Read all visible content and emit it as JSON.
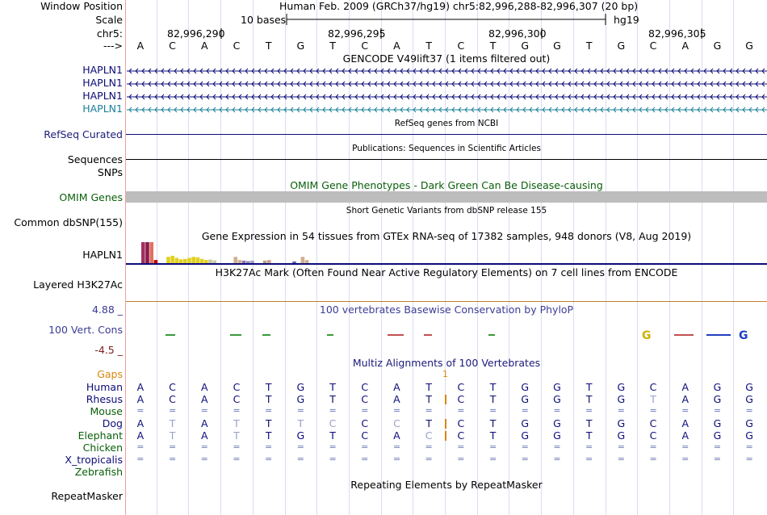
{
  "header": {
    "window_position_label": "Window Position",
    "title": "Human Feb. 2009 (GRCh37/hg19)   chr5:82,996,288-82,996,307 (20 bp)",
    "scale_label": "Scale",
    "scale_bar": "10 bases",
    "assembly": "hg19",
    "chrom_label": "chr5:",
    "strand_label": "--->",
    "coords": [
      "82,996,290",
      "82,996,295",
      "82,996,300",
      "82,996,305"
    ],
    "sequence": [
      "A",
      "C",
      "A",
      "C",
      "T",
      "G",
      "T",
      "C",
      "A",
      "T",
      "C",
      "T",
      "G",
      "G",
      "T",
      "G",
      "C",
      "A",
      "G",
      "G"
    ]
  },
  "colors": {
    "navy": "#0c0c78",
    "omim_green": "#0a5f0a",
    "gaps_orange": "#d9860a",
    "phylop_blue": "#3c3c96",
    "phylop_red": "#7a2020",
    "refseq": "#0c0c78",
    "teal": "#1a7f9a"
  },
  "tracks": {
    "gencode": {
      "title": "GENCODE V49lift37 (1 items filtered out)",
      "items": [
        "HAPLN1",
        "HAPLN1",
        "HAPLN1",
        "HAPLN1"
      ]
    },
    "refseq": {
      "title": "RefSeq genes from NCBI",
      "label": "RefSeq Curated"
    },
    "publications": {
      "title": "Publications: Sequences in Scientific Articles",
      "label": "Sequences"
    },
    "snps_label": "SNPs",
    "omim": {
      "title": "OMIM Gene Phenotypes - Dark Green Can Be Disease-causing",
      "label": "OMIM Genes"
    },
    "dbsnp": {
      "title": "Short Genetic Variants from dbSNP release 155",
      "label": "Common dbSNP(155)"
    },
    "gtex": {
      "title": "Gene Expression in 54 tissues from GTEx RNA-seq of 17382 samples, 948 donors (V8, Aug 2019)",
      "label": "HAPLN1"
    },
    "h3k27ac": {
      "title": "H3K27Ac Mark (Often Found Near Active Regulatory Elements) on 7 cell lines from ENCODE",
      "label": "Layered H3K27Ac"
    },
    "phylop": {
      "title": "100 vertebrates Basewise Conservation by PhyloP",
      "label": "100 Vert. Cons",
      "max": "4.88 _",
      "min": "-4.5 _"
    },
    "multiz": {
      "title": "Multiz Alignments of 100 Vertebrates",
      "gaps_label": "Gaps",
      "gap_count": "1",
      "species": [
        "Human",
        "Rhesus",
        "Mouse",
        "Dog",
        "Elephant",
        "Chicken",
        "X_tropicalis",
        "Zebrafish"
      ]
    },
    "repeatmasker": {
      "title": "Repeating Elements by RepeatMasker",
      "label": "RepeatMasker"
    }
  },
  "alignment": {
    "human": [
      "A",
      "C",
      "A",
      "C",
      "T",
      "G",
      "T",
      "C",
      "A",
      "T",
      "C",
      "T",
      "G",
      "G",
      "T",
      "G",
      "C",
      "A",
      "G",
      "G"
    ],
    "rhesus": [
      "A",
      "C",
      "A",
      "C",
      "T",
      "G",
      "T",
      "C",
      "A",
      "T",
      "C",
      "T",
      "G",
      "G",
      "T",
      "G",
      "T",
      "A",
      "G",
      "G"
    ],
    "dog": [
      "A",
      "T",
      "A",
      "T",
      "T",
      "T",
      "C",
      "C",
      "C",
      "T",
      "C",
      "T",
      "G",
      "G",
      "T",
      "G",
      "C",
      "A",
      "G",
      "G"
    ],
    "elephant": [
      "A",
      "T",
      "A",
      "T",
      "T",
      "G",
      "T",
      "C",
      "A",
      "C",
      "C",
      "T",
      "G",
      "G",
      "T",
      "G",
      "C",
      "A",
      "G",
      "G"
    ]
  },
  "gtex_tissues": [
    {
      "value": 1.0,
      "color": "#a03060"
    },
    {
      "value": 1.0,
      "color": "#8b1a4a"
    },
    {
      "value": 1.0,
      "color": "#e07060"
    },
    {
      "value": 0.15,
      "color": "#c00000"
    },
    {
      "value": 0.0,
      "color": "#ffffff"
    },
    {
      "value": 0.0,
      "color": "#ffffff"
    },
    {
      "value": 0.3,
      "color": "#e0d020"
    },
    {
      "value": 0.35,
      "color": "#e0d020"
    },
    {
      "value": 0.25,
      "color": "#e0d020"
    },
    {
      "value": 0.18,
      "color": "#e0d020"
    },
    {
      "value": 0.2,
      "color": "#e0d020"
    },
    {
      "value": 0.25,
      "color": "#e0d020"
    },
    {
      "value": 0.3,
      "color": "#e0d020"
    },
    {
      "value": 0.28,
      "color": "#e0d020"
    },
    {
      "value": 0.2,
      "color": "#e0d020"
    },
    {
      "value": 0.15,
      "color": "#e0d020"
    },
    {
      "value": 0.17,
      "color": "#c8c8a0"
    },
    {
      "value": 0.13,
      "color": "#c8c8a0"
    },
    {
      "value": 0.0,
      "color": "#ffffff"
    },
    {
      "value": 0.0,
      "color": "#ffffff"
    },
    {
      "value": 0.0,
      "color": "#ffffff"
    },
    {
      "value": 0.0,
      "color": "#ffffff"
    },
    {
      "value": 0.3,
      "color": "#d0b090"
    },
    {
      "value": 0.15,
      "color": "#d0b090"
    },
    {
      "value": 0.12,
      "color": "#9070b0"
    },
    {
      "value": 0.1,
      "color": "#9090c0"
    },
    {
      "value": 0.12,
      "color": "#a0a0c0"
    },
    {
      "value": 0.0,
      "color": "#ffffff"
    },
    {
      "value": 0.0,
      "color": "#ffffff"
    },
    {
      "value": 0.12,
      "color": "#b0a080"
    },
    {
      "value": 0.15,
      "color": "#d0a090"
    },
    {
      "value": 0.0,
      "color": "#ffffff"
    },
    {
      "value": 0.0,
      "color": "#ffffff"
    },
    {
      "value": 0.0,
      "color": "#ffffff"
    },
    {
      "value": 0.0,
      "color": "#ffffff"
    },
    {
      "value": 0.0,
      "color": "#ffffff"
    },
    {
      "value": 0.08,
      "color": "#6060b0"
    },
    {
      "value": 0.0,
      "color": "#ffffff"
    },
    {
      "value": 0.3,
      "color": "#d0b090"
    },
    {
      "value": 0.15,
      "color": "#d0b090"
    }
  ]
}
